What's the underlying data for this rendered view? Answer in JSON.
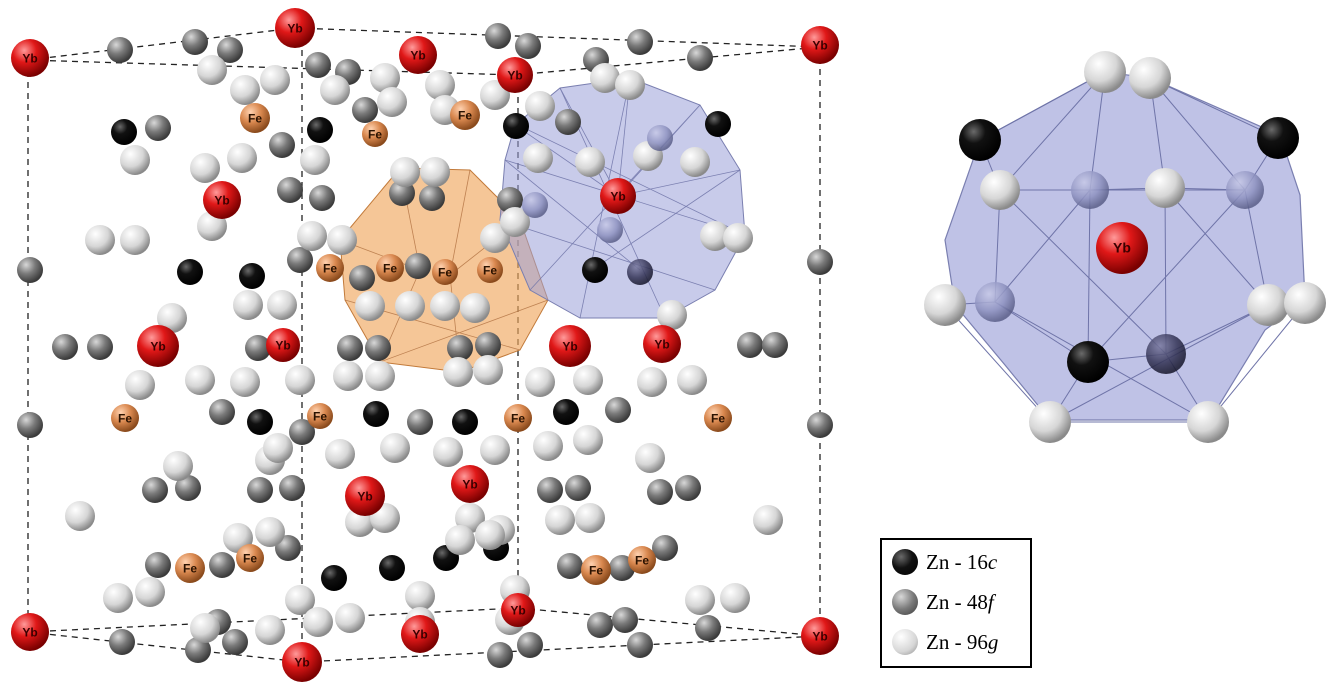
{
  "atom_labels": {
    "yb": "Yb",
    "fe": "Fe"
  },
  "colors": {
    "yb": "#e01818",
    "fe": "#d9884f",
    "zn_16c": "#111111",
    "zn_48f": "#7a7a7a",
    "zn_96g": "#d6d6d6",
    "polyhedron_fe": "#f0a860",
    "polyhedron_yb": "#9aa0d8"
  },
  "legend": {
    "items": [
      {
        "label_prefix": "Zn - 16",
        "label_site": "c",
        "key": "zn_16c"
      },
      {
        "label_prefix": "Zn - 48",
        "label_site": "f",
        "key": "zn_48f"
      },
      {
        "label_prefix": "Zn - 96",
        "label_site": "g",
        "key": "zn_96g"
      }
    ]
  }
}
